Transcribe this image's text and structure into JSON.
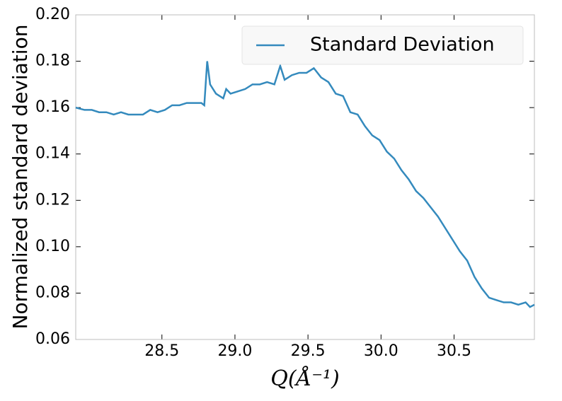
{
  "chart_data": {
    "type": "line",
    "xlabel": "Q(Å⁻¹)",
    "ylabel": "Normalized standard deviation",
    "legend": "upper right",
    "x": [
      27.91,
      27.97,
      28.02,
      28.07,
      28.12,
      28.17,
      28.22,
      28.27,
      28.32,
      28.37,
      28.42,
      28.47,
      28.52,
      28.57,
      28.62,
      28.67,
      28.72,
      28.77,
      28.79,
      28.81,
      28.83,
      28.87,
      28.92,
      28.94,
      28.97,
      29.02,
      29.07,
      29.12,
      29.17,
      29.22,
      29.27,
      29.31,
      29.34,
      29.39,
      29.44,
      29.49,
      29.54,
      29.59,
      29.64,
      29.69,
      29.74,
      29.79,
      29.84,
      29.89,
      29.94,
      29.99,
      30.04,
      30.09,
      30.14,
      30.19,
      30.24,
      30.29,
      30.34,
      30.39,
      30.44,
      30.49,
      30.54,
      30.59,
      30.64,
      30.69,
      30.74,
      30.79,
      30.84,
      30.89,
      30.94,
      30.99,
      31.02,
      31.05
    ],
    "series": [
      {
        "name": "Standard Deviation",
        "color": "#348abd",
        "values": [
          0.16,
          0.159,
          0.159,
          0.158,
          0.158,
          0.157,
          0.158,
          0.157,
          0.157,
          0.157,
          0.159,
          0.158,
          0.159,
          0.161,
          0.161,
          0.162,
          0.162,
          0.162,
          0.161,
          0.18,
          0.17,
          0.166,
          0.164,
          0.168,
          0.166,
          0.167,
          0.168,
          0.17,
          0.17,
          0.171,
          0.17,
          0.178,
          0.172,
          0.174,
          0.175,
          0.175,
          0.177,
          0.173,
          0.171,
          0.166,
          0.165,
          0.158,
          0.157,
          0.152,
          0.148,
          0.146,
          0.141,
          0.138,
          0.133,
          0.129,
          0.124,
          0.121,
          0.117,
          0.113,
          0.108,
          0.103,
          0.098,
          0.094,
          0.087,
          0.082,
          0.078,
          0.077,
          0.076,
          0.076,
          0.075,
          0.076,
          0.074,
          0.075
        ]
      }
    ],
    "xlim": [
      27.91,
      31.05
    ],
    "xticks": [
      28.5,
      {
        "value": 29,
        "label": "29.0"
      },
      29.5,
      {
        "value": 30,
        "label": "30.0"
      },
      30.5
    ],
    "ylim": [
      0.06,
      0.2
    ],
    "yticks": [
      0.06,
      0.08,
      {
        "value": 0.1,
        "label": "0.10"
      },
      0.12,
      0.14,
      0.16,
      0.18,
      {
        "value": 0.2,
        "label": "0.20"
      }
    ]
  }
}
